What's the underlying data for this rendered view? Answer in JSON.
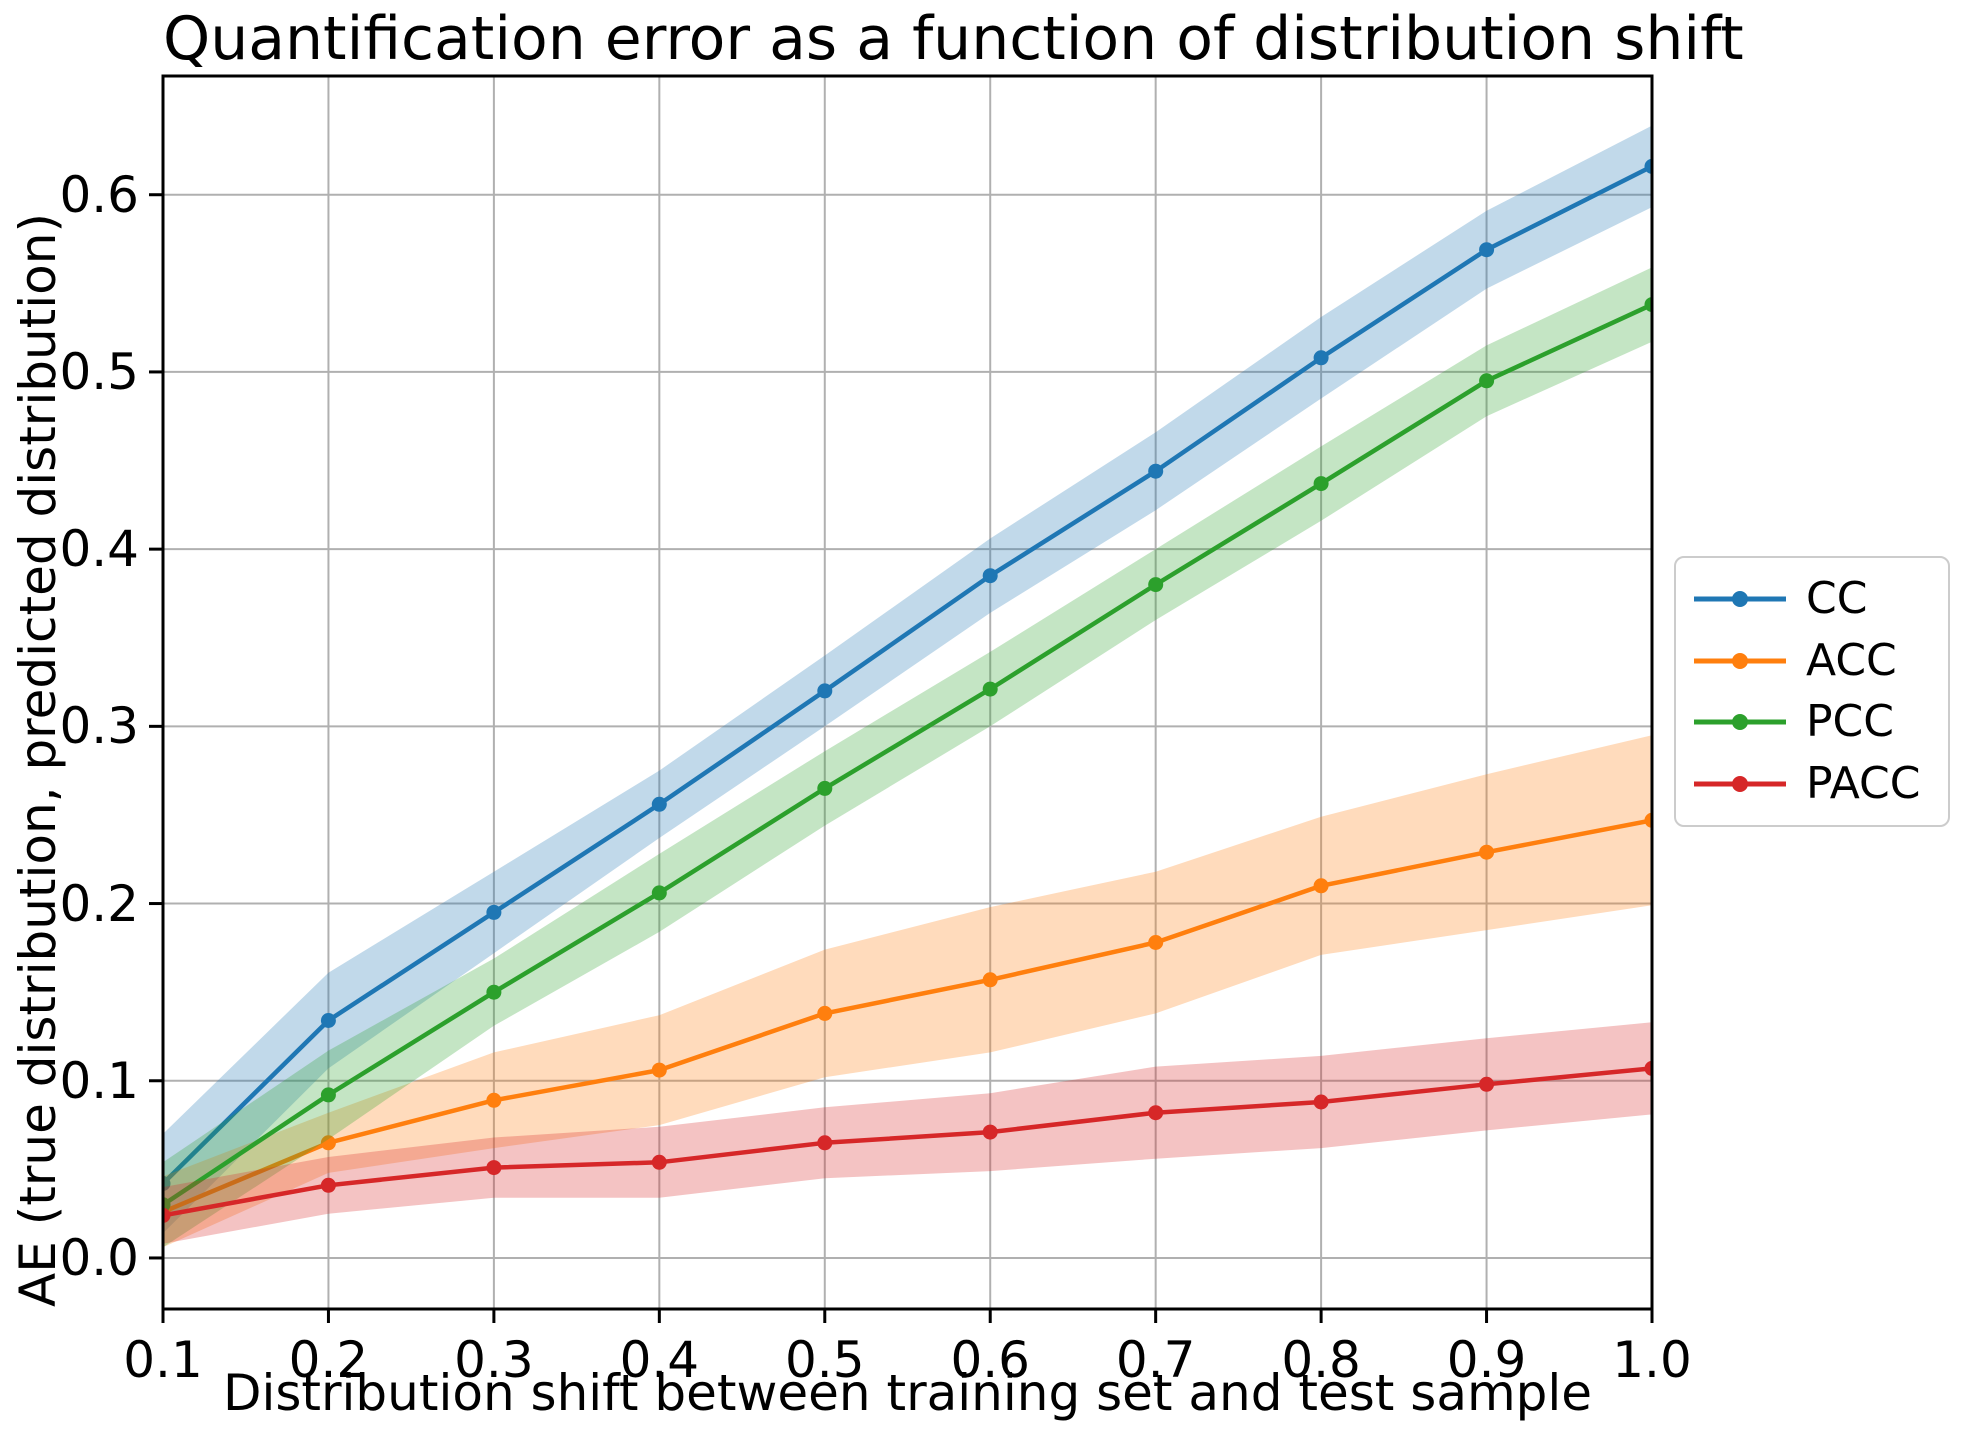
{
  "chart_data": {
    "type": "line",
    "title": "Quantification error as a function of distribution shift",
    "xlabel": "Distribution shift between training set and test sample",
    "ylabel": "AE (true distribution, predicted distribution)",
    "x": [
      0.1,
      0.2,
      0.3,
      0.4,
      0.5,
      0.6,
      0.7,
      0.8,
      0.9,
      1.0
    ],
    "x_tick_labels": [
      "0.1",
      "0.2",
      "0.3",
      "0.4",
      "0.5",
      "0.6",
      "0.7",
      "0.8",
      "0.9",
      "1.0"
    ],
    "y_ticks": [
      0.0,
      0.1,
      0.2,
      0.3,
      0.4,
      0.5,
      0.6
    ],
    "y_tick_labels": [
      "0.0",
      "0.1",
      "0.2",
      "0.3",
      "0.4",
      "0.5",
      "0.6"
    ],
    "xlim": [
      0.1,
      1.0
    ],
    "ylim": [
      -0.0288,
      0.667
    ],
    "grid": true,
    "legend_position": "outside-center-right",
    "band_opacity": 0.28,
    "series": [
      {
        "name": "CC",
        "color": "#1f77b4",
        "values": [
          0.042,
          0.134,
          0.195,
          0.256,
          0.32,
          0.385,
          0.444,
          0.508,
          0.569,
          0.616
        ],
        "band_halfwidth": [
          0.028,
          0.027,
          0.023,
          0.019,
          0.02,
          0.021,
          0.022,
          0.023,
          0.022,
          0.023
        ]
      },
      {
        "name": "ACC",
        "color": "#ff7f0e",
        "values": [
          0.026,
          0.065,
          0.089,
          0.106,
          0.138,
          0.157,
          0.178,
          0.21,
          0.229,
          0.247
        ],
        "band_halfwidth": [
          0.02,
          0.017,
          0.027,
          0.031,
          0.036,
          0.041,
          0.04,
          0.039,
          0.044,
          0.048
        ]
      },
      {
        "name": "PCC",
        "color": "#2ca02c",
        "values": [
          0.03,
          0.092,
          0.15,
          0.206,
          0.265,
          0.321,
          0.38,
          0.437,
          0.495,
          0.538
        ],
        "band_halfwidth": [
          0.024,
          0.025,
          0.019,
          0.022,
          0.021,
          0.021,
          0.02,
          0.021,
          0.02,
          0.021
        ]
      },
      {
        "name": "PACC",
        "color": "#d62728",
        "values": [
          0.024,
          0.041,
          0.051,
          0.054,
          0.065,
          0.071,
          0.082,
          0.088,
          0.098,
          0.107
        ],
        "band_halfwidth": [
          0.016,
          0.016,
          0.017,
          0.02,
          0.02,
          0.022,
          0.026,
          0.026,
          0.026,
          0.026
        ]
      }
    ],
    "legend_entries": [
      "CC",
      "ACC",
      "PCC",
      "PACC"
    ]
  },
  "style_colors": {
    "grid": "#b0b0b0",
    "spine": "#000000",
    "background": "#ffffff",
    "legend_border": "#cccccc"
  }
}
